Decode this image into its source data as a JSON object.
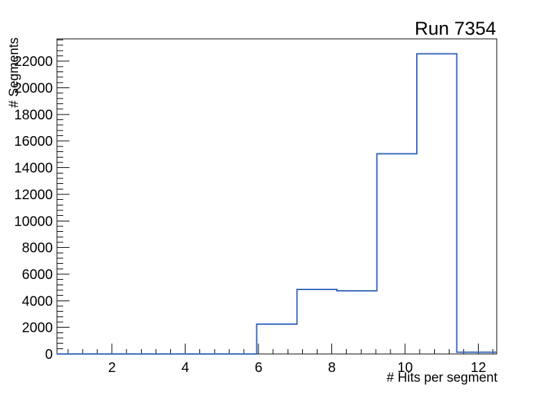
{
  "title": {
    "text": "Run 7354"
  },
  "axes": {
    "x": {
      "title": "# Hits per segment",
      "min": 0.5,
      "max": 12.5,
      "major_tick_values": [
        2,
        4,
        6,
        8,
        10,
        12
      ],
      "major_tick_labels": [
        "2",
        "4",
        "6",
        "8",
        "10",
        "12"
      ],
      "minor_tick_step": 0.4
    },
    "y": {
      "title": "# Segments",
      "min": 0,
      "max": 23680,
      "major_tick_step": 2000,
      "major_tick_values": [
        0,
        2000,
        4000,
        6000,
        8000,
        10000,
        12000,
        14000,
        16000,
        18000,
        20000,
        22000
      ],
      "major_tick_labels": [
        "0",
        "2000",
        "4000",
        "6000",
        "8000",
        "10000",
        "12000",
        "14000",
        "16000",
        "18000",
        "20000",
        "22000"
      ],
      "minor_tick_step": 400
    }
  },
  "chart_data": {
    "type": "bar",
    "subtype": "step-histogram",
    "title": "Run 7354",
    "xlabel": "# Hits per segment",
    "ylabel": "# Segments",
    "xlim": [
      0.5,
      12.5
    ],
    "ylim": [
      0,
      23680
    ],
    "n_bins": 11,
    "bin_edges": [
      0.5,
      1.5909,
      2.6818,
      3.7727,
      4.8636,
      5.9545,
      7.0455,
      8.1364,
      9.2273,
      10.3182,
      11.4091,
      12.5
    ],
    "counts": [
      0,
      0,
      0,
      0,
      0,
      2250,
      4850,
      4750,
      15050,
      22550,
      120
    ],
    "grid": false,
    "legend": "none"
  },
  "colors": {
    "histogram_line": "#3767bd",
    "axis_line": "#000000",
    "background": "#ffffff"
  }
}
